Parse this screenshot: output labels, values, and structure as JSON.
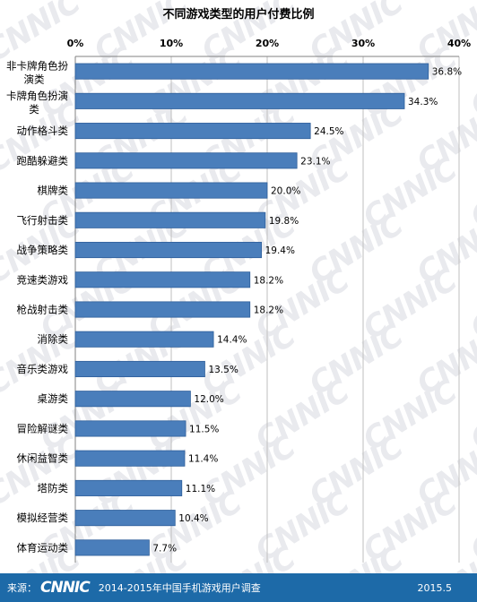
{
  "chart_data": {
    "type": "bar",
    "orientation": "horizontal",
    "title": "不同游戏类型的用户付费比例",
    "categories": [
      "非卡牌角色扮演类",
      "卡牌角色扮演类",
      "动作格斗类",
      "跑酷躲避类",
      "棋牌类",
      "飞行射击类",
      "战争策略类",
      "竞速类游戏",
      "枪战射击类",
      "消除类",
      "音乐类游戏",
      "桌游类",
      "冒险解谜类",
      "休闲益智类",
      "塔防类",
      "模拟经营类",
      "体育运动类"
    ],
    "values": [
      36.8,
      34.3,
      24.5,
      23.1,
      20.0,
      19.8,
      19.4,
      18.2,
      18.2,
      14.4,
      13.5,
      12.0,
      11.5,
      11.4,
      11.1,
      10.4,
      7.7
    ],
    "value_labels": [
      "36.8%",
      "34.3%",
      "24.5%",
      "23.1%",
      "20.0%",
      "19.8%",
      "19.4%",
      "18.2%",
      "18.2%",
      "14.4%",
      "13.5%",
      "12.0%",
      "11.5%",
      "11.4%",
      "11.1%",
      "10.4%",
      "7.7%"
    ],
    "xlim": [
      0,
      40
    ],
    "x_ticks": [
      0,
      10,
      20,
      30,
      40
    ],
    "x_tick_labels": [
      "0%",
      "10%",
      "20%",
      "30%",
      "40%"
    ],
    "x_axis_position": "top",
    "grid": true,
    "bar_color": "#4a7ebb",
    "bar_edge_color": "#2e5e9a"
  },
  "footer": {
    "source_label": "来源：",
    "logo": "CNNIC",
    "survey": "2014-2015年中国手机游戏用户调查",
    "date": "2015.5"
  },
  "watermark": "CNNIC"
}
